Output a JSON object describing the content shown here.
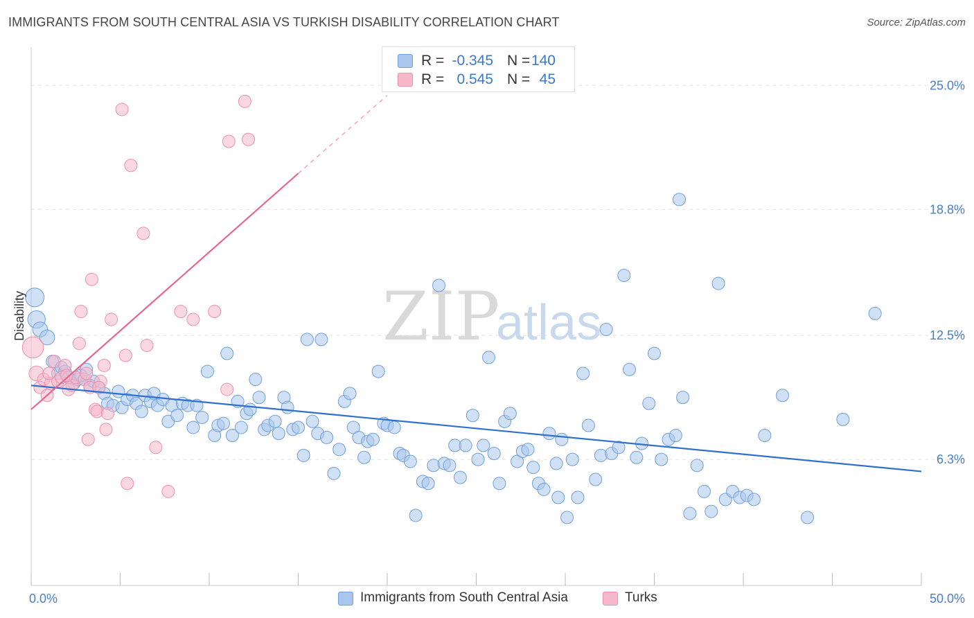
{
  "header": {
    "title": "IMMIGRANTS FROM SOUTH CENTRAL ASIA VS TURKISH DISABILITY CORRELATION CHART",
    "source": "Source: ZipAtlas.com"
  },
  "legend": {
    "rows": [
      {
        "r_label": "R =",
        "r_value": "-0.345",
        "n_label": "N =",
        "n_value": "140"
      },
      {
        "r_label": "R =",
        "r_value": "0.545",
        "n_label": "N =",
        "n_value": "45"
      }
    ]
  },
  "bottom_legend": [
    {
      "label": "Immigrants from South Central Asia"
    },
    {
      "label": "Turks"
    }
  ],
  "watermark": {
    "part1": "ZIP",
    "part2": "atlas"
  },
  "colors": {
    "blue_fill": "#a9c6ec",
    "blue_stroke": "#6f9fdc",
    "blue_line": "#2f6fcd",
    "pink_fill": "#f6b8ca",
    "pink_stroke": "#ee8fab",
    "pink_line": "#e5668f",
    "tick_text": "#4a7fc7",
    "grid": "#e0e0e0"
  },
  "chart_data": {
    "type": "scatter",
    "title": "IMMIGRANTS FROM SOUTH CENTRAL ASIA VS TURKISH DISABILITY CORRELATION CHART",
    "xlabel": "",
    "ylabel": "Disability",
    "xlim": [
      0,
      50
    ],
    "ylim": [
      0,
      26.5
    ],
    "x_tick_labels": [
      {
        "value": 0,
        "label": "0.0%"
      },
      {
        "value": 50,
        "label": "50.0%"
      }
    ],
    "y_tick_labels": [
      {
        "value": 6.3,
        "label": "6.3%"
      },
      {
        "value": 12.5,
        "label": "12.5%"
      },
      {
        "value": 18.8,
        "label": "18.8%"
      },
      {
        "value": 25.0,
        "label": "25.0%"
      }
    ],
    "grid": "horizontal dashed",
    "legend_position": "top-center",
    "series": [
      {
        "name": "Immigrants from South Central Asia",
        "color": "#a9c6ec",
        "trend": {
          "x": [
            0,
            50
          ],
          "y": [
            10.0,
            5.7
          ]
        },
        "points": [
          [
            0.2,
            14.4,
            1.5
          ],
          [
            0.3,
            13.3,
            1.4
          ],
          [
            0.5,
            12.8,
            1.2
          ],
          [
            0.9,
            12.4,
            1.2
          ],
          [
            1.2,
            11.2,
            1.0
          ],
          [
            1.5,
            10.6,
            1.0
          ],
          [
            1.7,
            10.9,
            1.0
          ],
          [
            1.9,
            10.7,
            1.0
          ],
          [
            2.1,
            10.4,
            1.0
          ],
          [
            2.4,
            10.1,
            1.0
          ],
          [
            2.6,
            10.3,
            1.0
          ],
          [
            2.8,
            10.5,
            1.0
          ],
          [
            3.1,
            10.8,
            1.0
          ],
          [
            3.3,
            10.0,
            1.0
          ],
          [
            3.5,
            10.2,
            1.0
          ],
          [
            3.8,
            9.9,
            1.0
          ],
          [
            4.1,
            9.6,
            1.0
          ],
          [
            4.3,
            9.1,
            1.0
          ],
          [
            4.6,
            9.0,
            1.0
          ],
          [
            4.9,
            9.7,
            1.0
          ],
          [
            5.1,
            8.9,
            1.0
          ],
          [
            5.4,
            9.3,
            1.0
          ],
          [
            5.7,
            9.5,
            1.0
          ],
          [
            5.9,
            9.1,
            1.0
          ],
          [
            6.2,
            8.7,
            1.0
          ],
          [
            6.4,
            9.5,
            1.0
          ],
          [
            6.7,
            9.2,
            1.0
          ],
          [
            6.9,
            9.6,
            1.0
          ],
          [
            7.1,
            9.0,
            1.0
          ],
          [
            7.4,
            9.3,
            1.0
          ],
          [
            7.7,
            8.2,
            1.0
          ],
          [
            7.9,
            9.0,
            1.0
          ],
          [
            8.2,
            8.5,
            1.0
          ],
          [
            8.5,
            9.1,
            1.0
          ],
          [
            8.8,
            9.0,
            1.0
          ],
          [
            9.1,
            7.9,
            1.0
          ],
          [
            9.3,
            9.0,
            1.0
          ],
          [
            9.6,
            8.4,
            1.0
          ],
          [
            9.9,
            10.7,
            1.0
          ],
          [
            10.3,
            7.5,
            1.0
          ],
          [
            10.5,
            8.0,
            1.0
          ],
          [
            10.8,
            8.1,
            1.0
          ],
          [
            11.0,
            11.6,
            1.0
          ],
          [
            11.3,
            7.5,
            1.0
          ],
          [
            11.6,
            9.2,
            1.0
          ],
          [
            11.8,
            7.9,
            1.0
          ],
          [
            12.1,
            8.6,
            1.0
          ],
          [
            12.3,
            8.8,
            1.0
          ],
          [
            12.6,
            10.3,
            1.0
          ],
          [
            12.8,
            9.4,
            1.0
          ],
          [
            13.1,
            7.8,
            1.0
          ],
          [
            13.3,
            8.0,
            1.0
          ],
          [
            13.7,
            8.2,
            1.0
          ],
          [
            13.9,
            7.6,
            1.0
          ],
          [
            14.2,
            9.4,
            1.0
          ],
          [
            14.4,
            8.9,
            1.0
          ],
          [
            14.7,
            7.8,
            1.0
          ],
          [
            15.0,
            7.9,
            1.0
          ],
          [
            15.3,
            6.5,
            1.0
          ],
          [
            15.5,
            12.3,
            1.0
          ],
          [
            15.8,
            8.2,
            1.0
          ],
          [
            16.1,
            7.6,
            1.0
          ],
          [
            16.3,
            12.3,
            1.0
          ],
          [
            16.6,
            7.4,
            1.0
          ],
          [
            17.0,
            5.6,
            1.0
          ],
          [
            17.3,
            6.8,
            1.0
          ],
          [
            17.6,
            9.2,
            1.0
          ],
          [
            17.9,
            9.6,
            1.0
          ],
          [
            18.1,
            7.9,
            1.0
          ],
          [
            18.4,
            7.4,
            1.0
          ],
          [
            18.7,
            6.4,
            1.0
          ],
          [
            18.9,
            7.2,
            1.0
          ],
          [
            19.2,
            7.3,
            1.0
          ],
          [
            19.5,
            10.7,
            1.0
          ],
          [
            19.8,
            8.1,
            1.0
          ],
          [
            20.0,
            8.0,
            1.0
          ],
          [
            20.4,
            7.9,
            1.0
          ],
          [
            20.7,
            6.6,
            1.0
          ],
          [
            20.9,
            6.5,
            1.0
          ],
          [
            21.3,
            6.2,
            1.0
          ],
          [
            21.6,
            3.5,
            1.0
          ],
          [
            22.0,
            5.2,
            1.0
          ],
          [
            22.3,
            5.1,
            1.0
          ],
          [
            22.6,
            6.0,
            1.0
          ],
          [
            22.9,
            15.0,
            1.0
          ],
          [
            23.2,
            6.1,
            1.0
          ],
          [
            23.5,
            6.0,
            1.0
          ],
          [
            23.8,
            7.0,
            1.0
          ],
          [
            24.1,
            5.4,
            1.0
          ],
          [
            24.4,
            7.0,
            1.0
          ],
          [
            24.8,
            8.5,
            1.0
          ],
          [
            25.1,
            6.3,
            1.0
          ],
          [
            25.4,
            7.0,
            1.0
          ],
          [
            25.7,
            11.4,
            1.0
          ],
          [
            26.0,
            6.6,
            1.0
          ],
          [
            26.3,
            5.1,
            1.0
          ],
          [
            26.6,
            8.2,
            1.0
          ],
          [
            26.9,
            8.6,
            1.0
          ],
          [
            27.3,
            6.2,
            1.0
          ],
          [
            27.6,
            6.7,
            1.0
          ],
          [
            27.9,
            6.8,
            1.0
          ],
          [
            28.2,
            5.9,
            1.0
          ],
          [
            28.5,
            5.1,
            1.0
          ],
          [
            28.8,
            4.8,
            1.0
          ],
          [
            29.1,
            7.6,
            1.0
          ],
          [
            29.5,
            6.1,
            1.0
          ],
          [
            29.8,
            7.3,
            1.0
          ],
          [
            30.1,
            3.4,
            1.0
          ],
          [
            30.4,
            6.3,
            1.0
          ],
          [
            30.7,
            4.4,
            1.0
          ],
          [
            31.0,
            10.6,
            1.0
          ],
          [
            31.3,
            8.0,
            1.0
          ],
          [
            31.7,
            5.3,
            1.0
          ],
          [
            32.0,
            6.5,
            1.0
          ],
          [
            32.3,
            12.8,
            1.0
          ],
          [
            32.6,
            6.6,
            1.0
          ],
          [
            33.0,
            6.9,
            1.0
          ],
          [
            33.3,
            15.5,
            1.0
          ],
          [
            33.6,
            10.8,
            1.0
          ],
          [
            34.0,
            6.4,
            1.0
          ],
          [
            34.3,
            7.1,
            1.0
          ],
          [
            34.7,
            9.1,
            1.0
          ],
          [
            35.0,
            11.6,
            1.0
          ],
          [
            35.4,
            6.3,
            1.0
          ],
          [
            35.8,
            7.3,
            1.0
          ],
          [
            36.2,
            7.5,
            1.0
          ],
          [
            36.6,
            9.4,
            1.0
          ],
          [
            37.0,
            3.6,
            1.0
          ],
          [
            37.4,
            6.0,
            1.0
          ],
          [
            37.8,
            4.7,
            1.0
          ],
          [
            38.2,
            3.7,
            1.0
          ],
          [
            38.6,
            15.1,
            1.0
          ],
          [
            39.0,
            4.3,
            1.0
          ],
          [
            39.4,
            4.7,
            1.0
          ],
          [
            39.8,
            4.4,
            1.0
          ],
          [
            40.2,
            4.5,
            1.0
          ],
          [
            40.6,
            4.3,
            1.0
          ],
          [
            41.2,
            7.5,
            1.0
          ],
          [
            42.2,
            9.5,
            1.0
          ],
          [
            43.6,
            3.4,
            1.0
          ],
          [
            45.6,
            8.3,
            1.0
          ],
          [
            47.4,
            13.6,
            1.0
          ],
          [
            36.4,
            19.3,
            1.0
          ],
          [
            29.6,
            4.4,
            1.0
          ]
        ]
      },
      {
        "name": "Turks",
        "color": "#f6b8ca",
        "trend": {
          "x": [
            0,
            15.0
          ],
          "y": [
            8.8,
            20.6
          ]
        },
        "trend_dashed": {
          "x": [
            15.0,
            20.0
          ],
          "y": [
            20.6,
            24.5
          ]
        },
        "points": [
          [
            0.1,
            11.9,
            1.7
          ],
          [
            0.3,
            10.6,
            1.2
          ],
          [
            0.5,
            9.9,
            1.0
          ],
          [
            0.7,
            10.3,
            1.0
          ],
          [
            0.9,
            9.5,
            1.0
          ],
          [
            1.1,
            10.1,
            1.0
          ],
          [
            1.3,
            11.2,
            1.0
          ],
          [
            1.5,
            10.2,
            1.0
          ],
          [
            1.7,
            10.4,
            1.0
          ],
          [
            1.9,
            11.0,
            1.0
          ],
          [
            2.1,
            9.8,
            1.0
          ],
          [
            2.3,
            10.0,
            1.0
          ],
          [
            2.5,
            10.4,
            1.0
          ],
          [
            2.7,
            12.1,
            1.0
          ],
          [
            2.8,
            13.7,
            1.0
          ],
          [
            3.0,
            10.3,
            1.0
          ],
          [
            3.1,
            10.6,
            1.0
          ],
          [
            3.2,
            7.3,
            1.0
          ],
          [
            3.3,
            9.9,
            1.0
          ],
          [
            3.4,
            15.3,
            1.0
          ],
          [
            3.6,
            8.8,
            1.0
          ],
          [
            3.7,
            8.7,
            1.0
          ],
          [
            3.9,
            10.2,
            1.0
          ],
          [
            4.1,
            11.0,
            1.0
          ],
          [
            4.2,
            7.8,
            1.0
          ],
          [
            4.3,
            8.6,
            1.0
          ],
          [
            4.5,
            13.3,
            1.0
          ],
          [
            5.1,
            23.8,
            1.0
          ],
          [
            5.3,
            11.5,
            1.0
          ],
          [
            5.4,
            5.1,
            1.0
          ],
          [
            5.6,
            21.0,
            1.0
          ],
          [
            6.3,
            17.6,
            1.0
          ],
          [
            6.5,
            12.0,
            1.0
          ],
          [
            7.0,
            6.9,
            1.0
          ],
          [
            7.7,
            4.7,
            1.0
          ],
          [
            8.4,
            13.7,
            1.0
          ],
          [
            9.1,
            13.3,
            1.0
          ],
          [
            10.3,
            13.7,
            1.0
          ],
          [
            11.0,
            9.8,
            1.0
          ],
          [
            11.1,
            22.2,
            1.0
          ],
          [
            12.0,
            24.2,
            1.0
          ],
          [
            12.2,
            22.3,
            1.0
          ],
          [
            1.0,
            10.6,
            1.0
          ],
          [
            2.0,
            10.5,
            1.0
          ],
          [
            3.8,
            9.9,
            1.0
          ]
        ]
      }
    ]
  }
}
